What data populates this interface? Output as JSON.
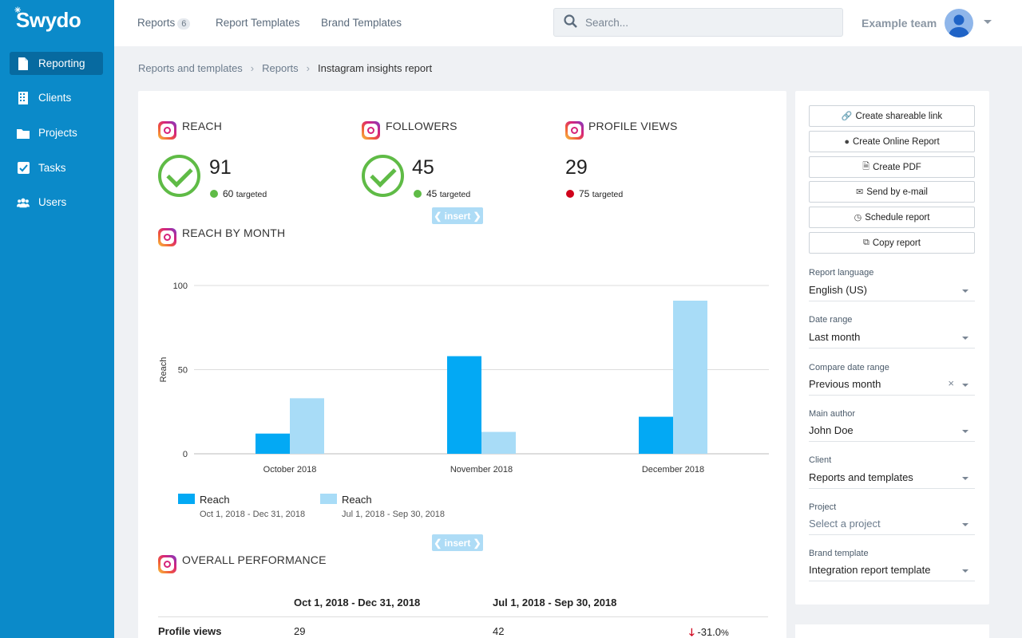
{
  "app": {
    "logo": "Swydo"
  },
  "sidebar": {
    "items": [
      {
        "label": "Reporting",
        "icon": "document-icon",
        "active": true
      },
      {
        "label": "Clients",
        "icon": "building-icon"
      },
      {
        "label": "Projects",
        "icon": "folder-icon"
      },
      {
        "label": "Tasks",
        "icon": "checkbox-icon"
      },
      {
        "label": "Users",
        "icon": "users-icon"
      }
    ]
  },
  "topbar": {
    "tabs": [
      {
        "label": "Reports",
        "badge": "6"
      },
      {
        "label": "Report Templates"
      },
      {
        "label": "Brand Templates"
      }
    ],
    "search_placeholder": "Search...",
    "team": "Example team"
  },
  "breadcrumb": [
    "Reports and templates",
    "Reports",
    "Instagram insights report"
  ],
  "metrics": [
    {
      "title": "REACH",
      "value": "91",
      "target": "60",
      "target_label": "targeted",
      "status": "met"
    },
    {
      "title": "FOLLOWERS",
      "value": "45",
      "target": "45",
      "target_label": "targeted",
      "status": "met"
    },
    {
      "title": "PROFILE VIEWS",
      "value": "29",
      "target": "75",
      "target_label": "targeted",
      "status": "missed"
    }
  ],
  "insert_label": "❮ insert ❯",
  "chart_section_title": "REACH BY MONTH",
  "chart_data": {
    "type": "bar",
    "categories": [
      "October 2018",
      "November 2018",
      "December 2018"
    ],
    "series": [
      {
        "name": "Reach",
        "period": "Oct 1, 2018 - Dec 31, 2018",
        "color": "#03a9f4",
        "values": [
          12,
          58,
          22
        ]
      },
      {
        "name": "Reach",
        "period": "Jul 1, 2018 - Sep 30, 2018",
        "color": "#a8dcf7",
        "values": [
          33,
          13,
          91
        ]
      }
    ],
    "ylabel": "Reach",
    "ylim": [
      0,
      100
    ],
    "yticks": [
      0,
      50,
      100
    ],
    "grid": true,
    "legend": "bottom-left"
  },
  "performance": {
    "title": "OVERALL PERFORMANCE",
    "columns": [
      "Oct 1, 2018 - Dec 31, 2018",
      "Jul 1, 2018 - Sep 30, 2018"
    ],
    "rows": [
      {
        "label": "Profile views",
        "current": "29",
        "previous": "42",
        "change": "-31.0",
        "change_unit": "%"
      }
    ]
  },
  "panel": {
    "buttons": [
      {
        "label": "Create shareable link",
        "icon": "link-icon",
        "glyph": "🔗"
      },
      {
        "label": "Create Online Report",
        "icon": "globe-icon",
        "glyph": "🌐"
      },
      {
        "label": "Create PDF",
        "icon": "pdf-icon",
        "glyph": "📄"
      },
      {
        "label": "Send by e-mail",
        "icon": "envelope-icon",
        "glyph": "✉"
      },
      {
        "label": "Schedule report",
        "icon": "clock-icon",
        "glyph": "⏲"
      },
      {
        "label": "Copy report",
        "icon": "copy-icon",
        "glyph": "⧉"
      }
    ],
    "fields": [
      {
        "label": "Report language",
        "value": "English (US)"
      },
      {
        "label": "Date range",
        "value": "Last month"
      },
      {
        "label": "Compare date range",
        "value": "Previous month",
        "clearable": true
      },
      {
        "label": "Main author",
        "value": "John Doe"
      },
      {
        "label": "Client",
        "value": "Reports and templates"
      },
      {
        "label": "Project",
        "value": "Select a project",
        "placeholder": true
      },
      {
        "label": "Brand template",
        "value": "Integration report template"
      }
    ]
  },
  "colors": {
    "sidebar": "#0b8ac9",
    "accent": "#03a9f4",
    "success": "#5fbb46",
    "danger": "#d0021b"
  }
}
